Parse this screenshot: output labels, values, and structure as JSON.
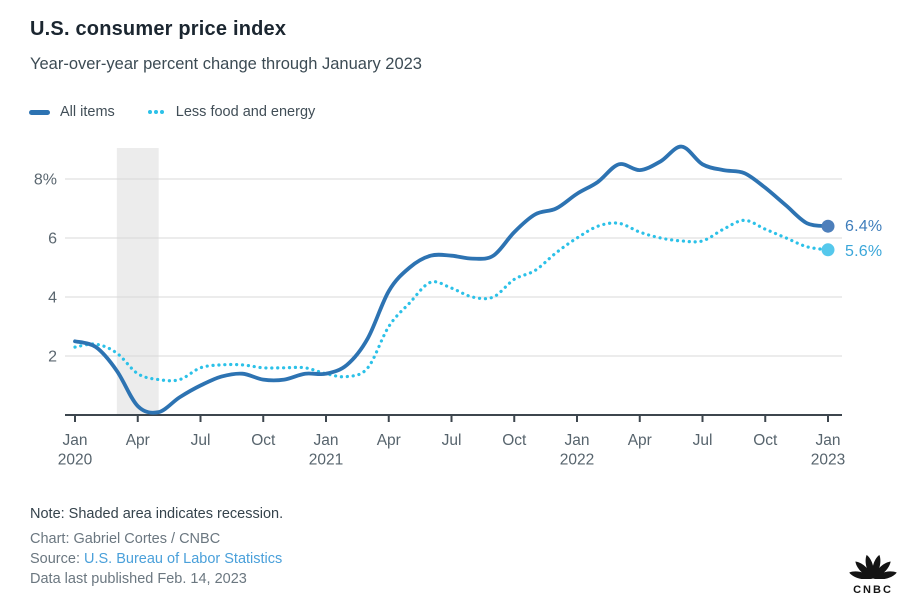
{
  "chart_data": {
    "type": "line",
    "title": "U.S. consumer price index",
    "subtitle": "Year-over-year percent change through January 2023",
    "x": [
      "Jan 2020",
      "Feb 2020",
      "Mar 2020",
      "Apr 2020",
      "May 2020",
      "Jun 2020",
      "Jul 2020",
      "Aug 2020",
      "Sep 2020",
      "Oct 2020",
      "Nov 2020",
      "Dec 2020",
      "Jan 2021",
      "Feb 2021",
      "Mar 2021",
      "Apr 2021",
      "May 2021",
      "Jun 2021",
      "Jul 2021",
      "Aug 2021",
      "Sep 2021",
      "Oct 2021",
      "Nov 2021",
      "Dec 2021",
      "Jan 2022",
      "Feb 2022",
      "Mar 2022",
      "Apr 2022",
      "May 2022",
      "Jun 2022",
      "Jul 2022",
      "Aug 2022",
      "Sep 2022",
      "Oct 2022",
      "Nov 2022",
      "Dec 2022",
      "Jan 2023"
    ],
    "series": [
      {
        "name": "All items",
        "style": "solid",
        "color": "#2d73b2",
        "dot_color": "#4d7fbb",
        "end_label": "6.4%",
        "values": [
          2.5,
          2.3,
          1.5,
          0.3,
          0.1,
          0.6,
          1.0,
          1.3,
          1.4,
          1.2,
          1.2,
          1.4,
          1.4,
          1.7,
          2.6,
          4.2,
          5.0,
          5.4,
          5.4,
          5.3,
          5.4,
          6.2,
          6.8,
          7.0,
          7.5,
          7.9,
          8.5,
          8.3,
          8.6,
          9.1,
          8.5,
          8.3,
          8.2,
          7.7,
          7.1,
          6.5,
          6.4
        ]
      },
      {
        "name": "Less food and energy",
        "style": "dotted",
        "color": "#2cc1e8",
        "dot_color": "#55c8ec",
        "end_label": "5.6%",
        "values": [
          2.3,
          2.4,
          2.1,
          1.4,
          1.2,
          1.2,
          1.6,
          1.7,
          1.7,
          1.6,
          1.6,
          1.6,
          1.4,
          1.3,
          1.6,
          3.0,
          3.8,
          4.5,
          4.3,
          4.0,
          4.0,
          4.6,
          4.9,
          5.5,
          6.0,
          6.4,
          6.5,
          6.2,
          6.0,
          5.9,
          5.9,
          6.3,
          6.6,
          6.3,
          6.0,
          5.7,
          5.6
        ]
      }
    ],
    "ylim": [
      0,
      9.05
    ],
    "y_ticks": [
      {
        "v": 2,
        "label": "2"
      },
      {
        "v": 4,
        "label": "4"
      },
      {
        "v": 6,
        "label": "6"
      },
      {
        "v": 8,
        "label": "8%"
      }
    ],
    "x_ticks": [
      {
        "m": 0,
        "month": "Jan",
        "year": "2020"
      },
      {
        "m": 3,
        "month": "Apr"
      },
      {
        "m": 6,
        "month": "Jul"
      },
      {
        "m": 9,
        "month": "Oct"
      },
      {
        "m": 12,
        "month": "Jan",
        "year": "2021"
      },
      {
        "m": 15,
        "month": "Apr"
      },
      {
        "m": 18,
        "month": "Jul"
      },
      {
        "m": 21,
        "month": "Oct"
      },
      {
        "m": 24,
        "month": "Jan",
        "year": "2022"
      },
      {
        "m": 27,
        "month": "Apr"
      },
      {
        "m": 30,
        "month": "Jul"
      },
      {
        "m": 33,
        "month": "Oct"
      },
      {
        "m": 36,
        "month": "Jan",
        "year": "2023"
      }
    ],
    "recession_band": {
      "from_month": 2,
      "to_month": 4
    },
    "grid": "horizontal",
    "legend_position": "top-left"
  },
  "footer": {
    "note": "Note: Shaded area indicates recession.",
    "credit": "Chart: Gabriel Cortes / CNBC",
    "source_prefix": "Source: ",
    "source_link": "U.S. Bureau of Labor Statistics",
    "published": "Data last published Feb. 14, 2023"
  },
  "logo": {
    "text": "CNBC"
  },
  "colors": {
    "grid": "#d9d9d9",
    "band": "#ececec",
    "axis": "#3d464e",
    "end_label_all_items": "#3e7dbb",
    "end_label_core": "#3aa6d9",
    "link": "#4aa0da"
  }
}
